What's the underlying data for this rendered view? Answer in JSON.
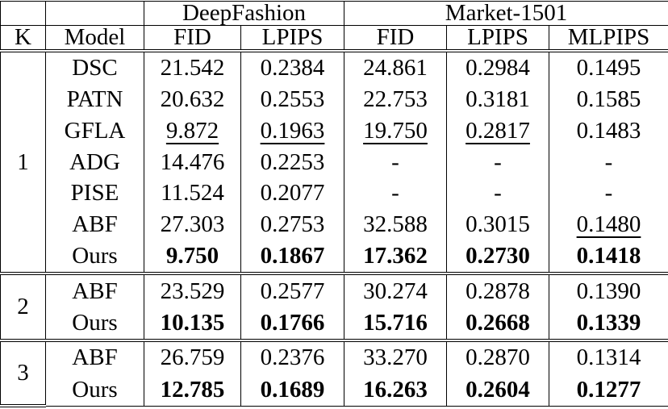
{
  "header": {
    "groups": [
      "DeepFashion",
      "Market-1501"
    ],
    "columns": [
      "K",
      "Model",
      "FID",
      "LPIPS",
      "FID",
      "LPIPS",
      "MLPIPS"
    ]
  },
  "table": {
    "groups": [
      {
        "k": "1",
        "rows": [
          {
            "model": "DSC",
            "values": [
              "21.542",
              "0.2384",
              "24.861",
              "0.2984",
              "0.1495"
            ]
          },
          {
            "model": "PATN",
            "values": [
              "20.632",
              "0.2553",
              "22.753",
              "0.3181",
              "0.1585"
            ]
          },
          {
            "model": "GFLA",
            "values": [
              "9.872",
              "0.1963",
              "19.750",
              "0.2817",
              "0.1483"
            ],
            "underlined": [
              0,
              1,
              2,
              3
            ]
          },
          {
            "model": "ADG",
            "values": [
              "14.476",
              "0.2253",
              "-",
              "-",
              "-"
            ]
          },
          {
            "model": "PISE",
            "values": [
              "11.524",
              "0.2077",
              "-",
              "-",
              "-"
            ]
          },
          {
            "model": "ABF",
            "values": [
              "27.303",
              "0.2753",
              "32.588",
              "0.3015",
              "0.1480"
            ],
            "underlined": [
              4
            ]
          },
          {
            "model": "Ours",
            "values": [
              "9.750",
              "0.1867",
              "17.362",
              "0.2730",
              "0.1418"
            ],
            "bold": true
          }
        ]
      },
      {
        "k": "2",
        "rows": [
          {
            "model": "ABF",
            "values": [
              "23.529",
              "0.2577",
              "30.274",
              "0.2878",
              "0.1390"
            ]
          },
          {
            "model": "Ours",
            "values": [
              "10.135",
              "0.1766",
              "15.716",
              "0.2668",
              "0.1339"
            ],
            "bold": true
          }
        ]
      },
      {
        "k": "3",
        "rows": [
          {
            "model": "ABF",
            "values": [
              "26.759",
              "0.2376",
              "33.270",
              "0.2870",
              "0.1314"
            ]
          },
          {
            "model": "Ours",
            "values": [
              "12.785",
              "0.1689",
              "16.263",
              "0.2604",
              "0.1277"
            ],
            "bold": true
          }
        ]
      }
    ]
  }
}
